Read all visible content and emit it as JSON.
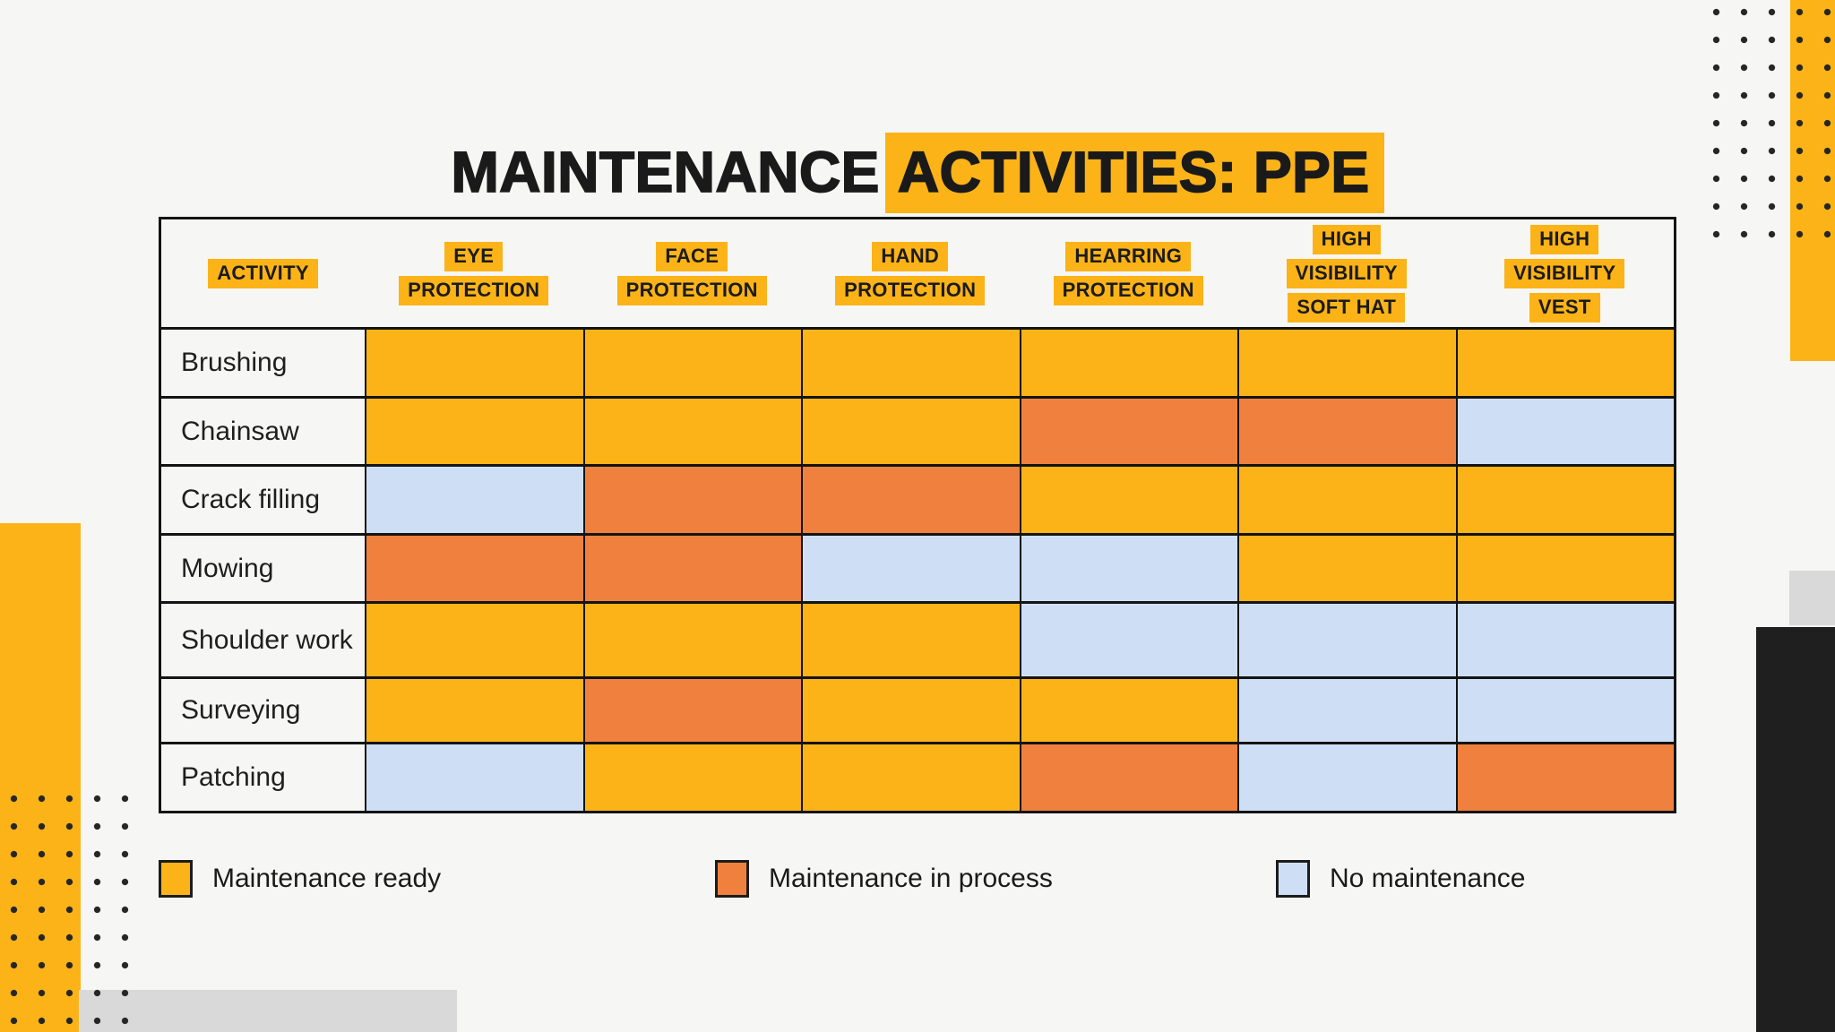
{
  "title": {
    "prefix": "MAINTENANCE",
    "highlighted": "ACTIVITIES: PPE"
  },
  "chart_data": {
    "type": "table",
    "title": "MAINTENANCE ACTIVITIES: PPE",
    "activity_column_header": "ACTIVITY",
    "column_headers": [
      {
        "label": "EYE PROTECTION",
        "lines": [
          "EYE",
          "PROTECTION"
        ]
      },
      {
        "label": "FACE PROTECTION",
        "lines": [
          "FACE",
          "PROTECTION"
        ]
      },
      {
        "label": "HAND PROTECTION",
        "lines": [
          "HAND",
          "PROTECTION"
        ]
      },
      {
        "label": "HEARRING PROTECTION",
        "lines": [
          "HEARRING",
          "PROTECTION"
        ]
      },
      {
        "label": "HIGH VISIBILITY SOFT HAT",
        "lines": [
          "HIGH",
          "VISIBILITY",
          "SOFT HAT"
        ]
      },
      {
        "label": "HIGH VISIBILITY VEST",
        "lines": [
          "HIGH",
          "VISIBILITY",
          "VEST"
        ]
      }
    ],
    "rows": [
      {
        "activity": "Brushing",
        "statuses": [
          "ready",
          "ready",
          "ready",
          "ready",
          "ready",
          "ready"
        ]
      },
      {
        "activity": "Chainsaw",
        "statuses": [
          "ready",
          "ready",
          "ready",
          "process",
          "process",
          "none"
        ]
      },
      {
        "activity": "Crack filling",
        "statuses": [
          "none",
          "process",
          "process",
          "ready",
          "ready",
          "ready"
        ]
      },
      {
        "activity": "Mowing",
        "statuses": [
          "process",
          "process",
          "none",
          "none",
          "ready",
          "ready"
        ]
      },
      {
        "activity": "Shoulder work",
        "statuses": [
          "ready",
          "ready",
          "ready",
          "none",
          "none",
          "none"
        ]
      },
      {
        "activity": "Surveying",
        "statuses": [
          "ready",
          "process",
          "ready",
          "ready",
          "none",
          "none"
        ]
      },
      {
        "activity": "Patching",
        "statuses": [
          "none",
          "ready",
          "ready",
          "process",
          "none",
          "process"
        ]
      }
    ],
    "legend": [
      {
        "status": "ready",
        "label": "Maintenance ready"
      },
      {
        "status": "process",
        "label": "Maintenance in process"
      },
      {
        "status": "none",
        "label": "No maintenance"
      }
    ],
    "status_colors": {
      "ready": "#fbb318",
      "process": "#f0803d",
      "none": "#cedff5"
    },
    "accent_color": "#fbb318"
  }
}
